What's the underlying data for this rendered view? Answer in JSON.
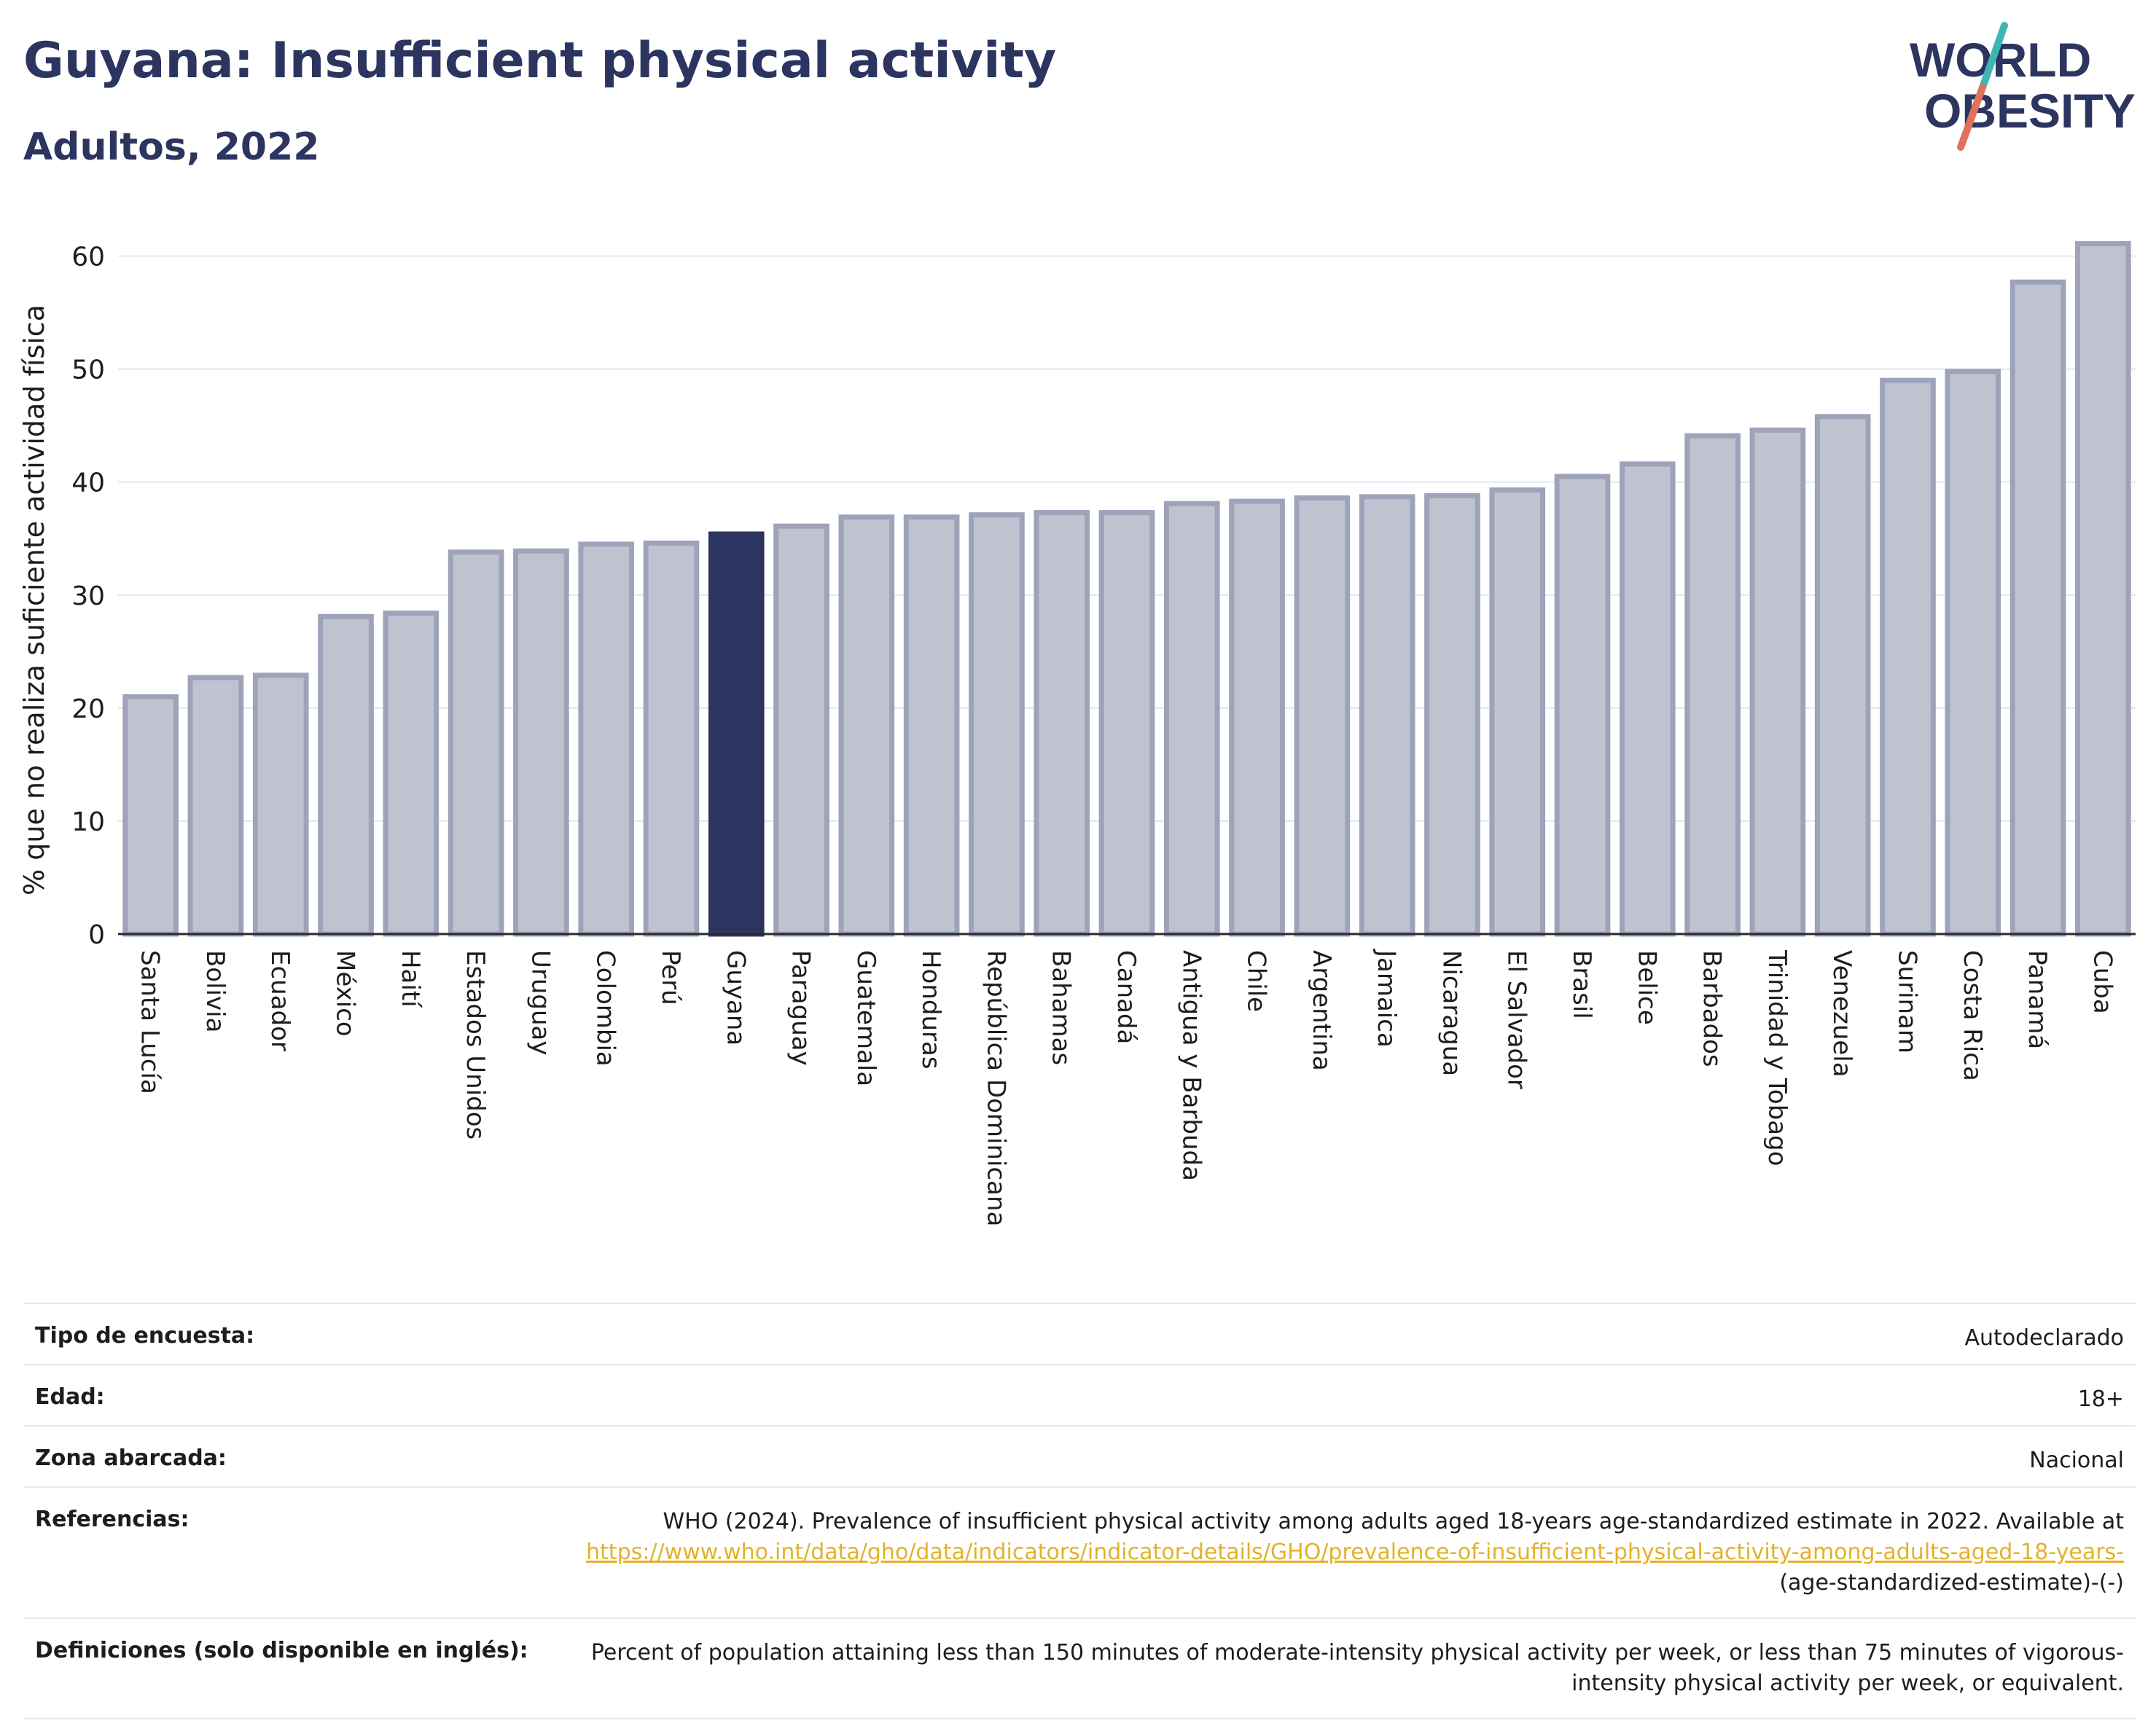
{
  "header": {
    "title": "Guyana: Insufficient physical activity",
    "subtitle": "Adultos, 2022",
    "logo_line1": "WORLD",
    "logo_line2": "OBESITY"
  },
  "colors": {
    "highlight": "#2c3560",
    "bar_fill": "#bfc3d0",
    "bar_stroke": "#9ea3ba",
    "title": "#2c3560",
    "link": "#e3b12a",
    "logo_slash_top": "#3fb6b3",
    "logo_slash_bottom": "#e0715f"
  },
  "chart_data": {
    "type": "bar",
    "title": "Guyana: Insufficient physical activity",
    "subtitle": "Adultos, 2022",
    "xlabel": "",
    "ylabel": "% que no realiza suficiente actividad física",
    "ylim": [
      0,
      60
    ],
    "yticks": [
      0,
      10,
      20,
      30,
      40,
      50,
      60
    ],
    "grid": true,
    "highlight": "Guyana",
    "categories": [
      "Santa Lucía",
      "Bolivia",
      "Ecuador",
      "México",
      "Haití",
      "Estados Unidos",
      "Uruguay",
      "Colombia",
      "Perú",
      "Guyana",
      "Paraguay",
      "Guatemala",
      "Honduras",
      "República Dominicana",
      "Bahamas",
      "Canadá",
      "Antigua y Barbuda",
      "Chile",
      "Argentina",
      "Jamaica",
      "Nicaragua",
      "El Salvador",
      "Brasil",
      "Belice",
      "Barbados",
      "Trinidad y Tobago",
      "Venezuela",
      "Surinam",
      "Costa Rica",
      "Panamá",
      "Cuba"
    ],
    "values": [
      21.0,
      22.7,
      22.9,
      28.1,
      28.4,
      33.8,
      33.9,
      34.5,
      34.6,
      35.4,
      36.1,
      36.9,
      36.9,
      37.1,
      37.3,
      37.3,
      38.1,
      38.3,
      38.6,
      38.7,
      38.8,
      39.3,
      40.5,
      41.6,
      44.1,
      44.6,
      45.8,
      49.0,
      49.8,
      57.7,
      61.1
    ]
  },
  "meta": {
    "survey_label": "Tipo de encuesta:",
    "survey_value": "Autodeclarado",
    "age_label": "Edad:",
    "age_value": "18+",
    "area_label": "Zona abarcada:",
    "area_value": "Nacional",
    "refs_label": "Referencias:",
    "refs_text": "WHO (2024). Prevalence of insufficient physical activity among adults aged 18-years age-standardized estimate in 2022. Available at",
    "refs_link": "https://www.who.int/data/gho/data/indicators/indicator-details/GHO/prevalence-of-insufficient-physical-activity-among-adults-aged-18-years-",
    "refs_tail": "(age-standardized-estimate)-(-)",
    "defs_label": "Definiciones (solo disponible en inglés):",
    "defs_text": "Percent of population attaining less than 150 minutes of moderate-intensity physical activity per week, or less than 75 minutes of vigorous-intensity physical activity per week, or equivalent."
  }
}
